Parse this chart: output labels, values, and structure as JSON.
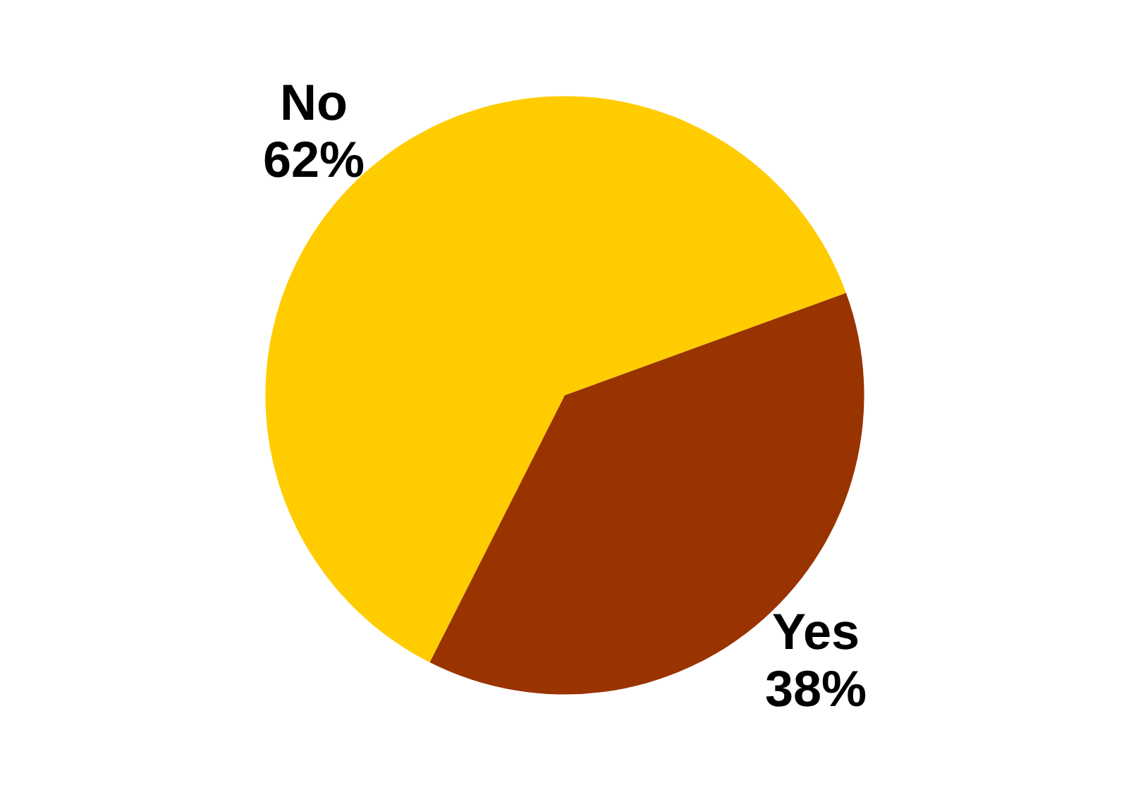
{
  "chart_data": {
    "type": "pie",
    "categories": [
      "No",
      "Yes"
    ],
    "values": [
      62,
      38
    ],
    "colors": [
      "#ffcc00",
      "#993300"
    ],
    "value_labels": [
      "62%",
      "38%"
    ]
  }
}
